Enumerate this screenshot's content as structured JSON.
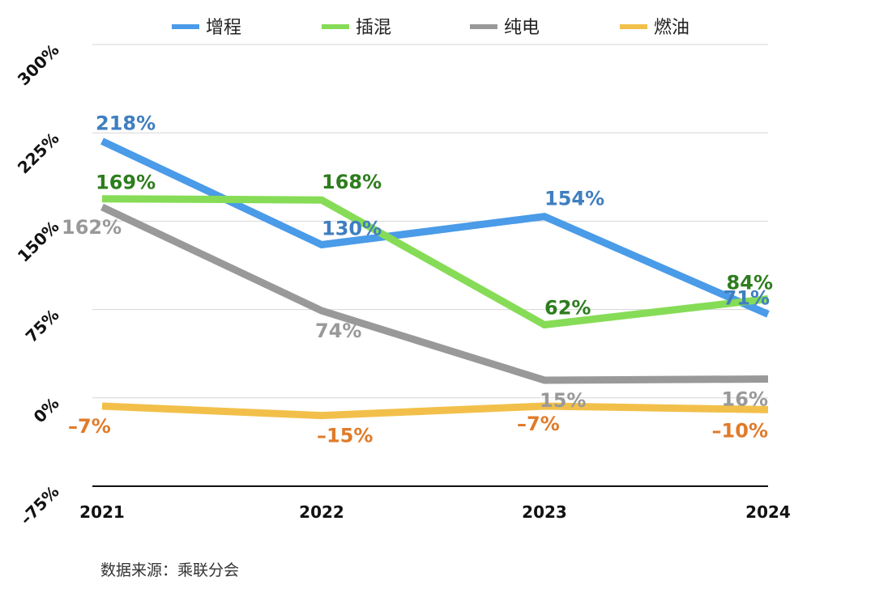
{
  "chart_data": {
    "type": "line",
    "categories": [
      "2021",
      "2022",
      "2023",
      "2024"
    ],
    "ylim": [
      -75,
      300
    ],
    "yticks": [
      300,
      225,
      150,
      75,
      0,
      -75
    ],
    "ytick_labels": [
      "300%",
      "225%",
      "150%",
      "75%",
      "0%",
      "–75%"
    ],
    "grid": true,
    "legend_position": "top",
    "series": [
      {
        "name": "增程",
        "color": "#4a9be8",
        "label_color": "#3f7fc0",
        "values": [
          218,
          130,
          154,
          71
        ],
        "labels": [
          "218%",
          "130%",
          "154%",
          "71%"
        ]
      },
      {
        "name": "插混",
        "color": "#86dc56",
        "label_color": "#2e7d1e",
        "values": [
          169,
          168,
          62,
          84
        ],
        "labels": [
          "169%",
          "168%",
          "62%",
          "84%"
        ]
      },
      {
        "name": "纯电",
        "color": "#999999",
        "label_color": "#999999",
        "values": [
          162,
          74,
          15,
          16
        ],
        "labels": [
          "162%",
          "74%",
          "15%",
          "16%"
        ]
      },
      {
        "name": "燃油",
        "color": "#f2c04a",
        "label_color": "#e07b2a",
        "values": [
          -7,
          -15,
          -7,
          -10
        ],
        "labels": [
          "–7%",
          "–15%",
          "–7%",
          "–10%"
        ]
      }
    ]
  },
  "source_text": "数据来源：乘联分会"
}
